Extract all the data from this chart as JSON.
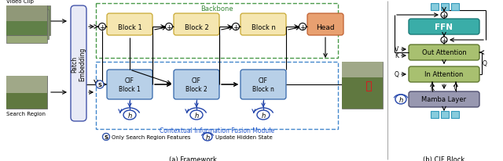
{
  "title_a": "(a) Framework",
  "title_b": "(b) CIF Block",
  "backbone_label": "Backbone",
  "cifm_label": "Contextual Information Fusion Module",
  "legend_s": "Only Search Region Features",
  "legend_h": "Update Hidden State",
  "block_labels": [
    "Block 1",
    "Block 2",
    "Block n"
  ],
  "cif_labels": [
    "CIF\nBlock 1",
    "CIF\nBlock 2",
    "CIF\nBlock n"
  ],
  "head_label": "Head",
  "patch_embed_label": "Patch\nEmbedding",
  "ffn_label": "FFN",
  "out_attn_label": "Out Attention",
  "in_attn_label": "In Attention",
  "mamba_label": "Mamba Layer",
  "video_clip_label": "Video Clip",
  "search_region_label": "Search Region",
  "block_color": "#f5e6b0",
  "block_border": "#c8a832",
  "cif_color": "#b8d0e8",
  "cif_border": "#3366aa",
  "head_color": "#e8a070",
  "head_border": "#c06030",
  "patch_embed_color": "#e8eaf6",
  "patch_embed_border": "#4455aa",
  "ffn_color": "#3aada8",
  "ffn_border": "#1a7a78",
  "out_attn_color": "#a8c070",
  "out_attn_border": "#607830",
  "in_attn_color": "#a8c070",
  "in_attn_border": "#607830",
  "mamba_color": "#9898b0",
  "mamba_border": "#505070",
  "backbone_border": "#4a9a4a",
  "cifm_border": "#4488cc",
  "sq_color": "#88ccdd",
  "sq_border": "#3399bb",
  "arrow_color": "#111111",
  "text_color": "#111111",
  "blue_text": "#2255cc",
  "green_text": "#3a8a3a"
}
